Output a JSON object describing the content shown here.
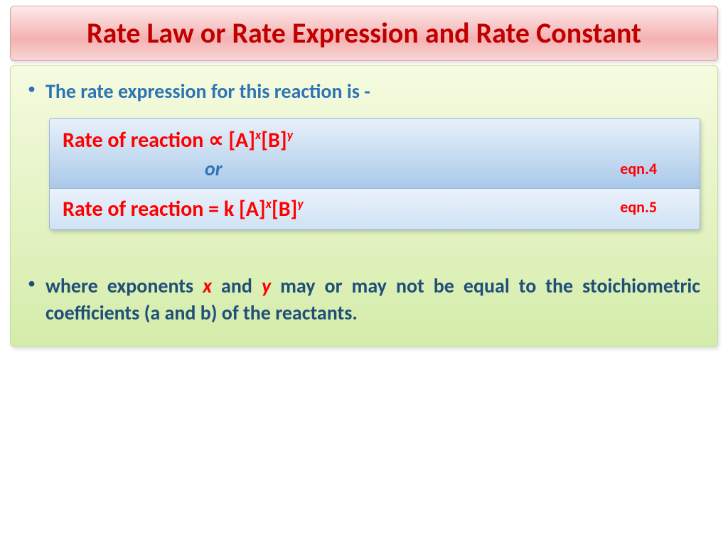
{
  "title": "Rate Law or Rate Expression and Rate Constant",
  "bullet1_text": "The rate expression for this reaction is -",
  "equation_box": {
    "line1_prefix": "Rate of reaction  ∝   [A]",
    "line1_sup1": "x",
    "line1_mid": "[B]",
    "line1_sup2": "y",
    "or_text": "or",
    "label4": "eqn.4",
    "line2_prefix": "Rate of reaction  = k [A]",
    "line2_sup1": "x",
    "line2_mid": "[B]",
    "line2_sup2": "y",
    "label5": "eqn.5"
  },
  "bullet2": {
    "pre": "where exponents ",
    "x": "x",
    "mid1": " and ",
    "y": "y",
    "post": " may or may not be equal to the stoichiometric coefficients (a and b) of the reactants."
  },
  "colors": {
    "title_text": "#c00000",
    "bullet1_text": "#2e74b5",
    "equation_text": "#ff0000",
    "bullet2_text": "#1f4e79"
  }
}
